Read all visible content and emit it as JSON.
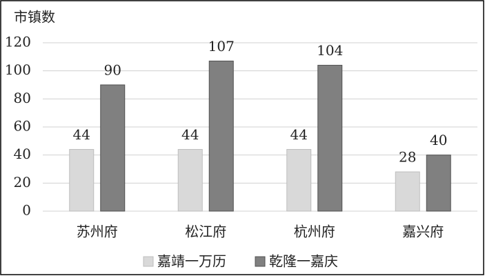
{
  "chart_data": {
    "type": "bar",
    "y_label": "市镇数",
    "categories": [
      "苏州府",
      "松江府",
      "杭州府",
      "嘉兴府"
    ],
    "series": [
      {
        "name": "嘉靖一万历",
        "color": "#d9d9d9",
        "values": [
          44,
          44,
          44,
          28
        ]
      },
      {
        "name": "乾隆一嘉庆",
        "color": "#808080",
        "values": [
          90,
          107,
          104,
          40
        ]
      }
    ],
    "ylim": [
      0,
      120
    ],
    "yticks": [
      0,
      20,
      40,
      60,
      80,
      100,
      120
    ],
    "grid": true,
    "legend": "bottom"
  }
}
